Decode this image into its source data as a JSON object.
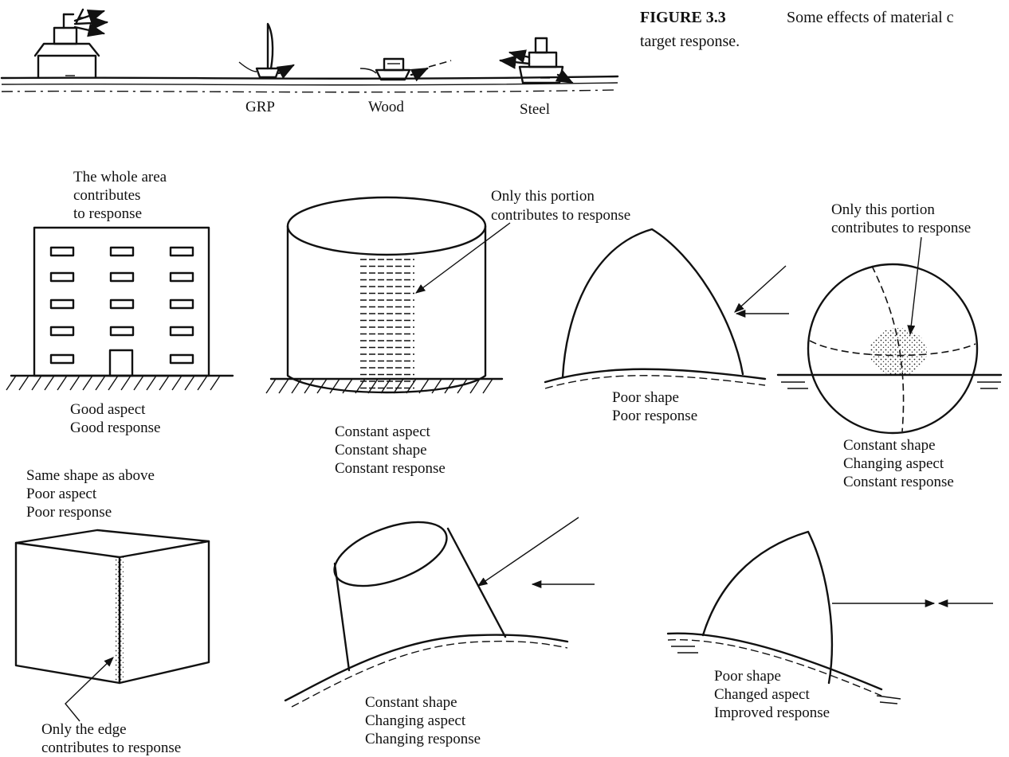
{
  "figure": {
    "number": "FIGURE 3.3",
    "caption_line1": "Some effects of material c",
    "caption_line2": "target response."
  },
  "ships": {
    "grp": "GRP",
    "wood": "Wood",
    "steel": "Steel"
  },
  "panels": {
    "building": {
      "top_lines": [
        "The whole area",
        "contributes",
        "to response"
      ],
      "bottom_lines": [
        "Good aspect",
        "Good response"
      ]
    },
    "tank": {
      "top_lines": [
        "Only this portion",
        "contributes to response"
      ],
      "bottom_lines": [
        "Constant aspect",
        "Constant shape",
        "Constant response"
      ]
    },
    "dome": {
      "bottom_lines": [
        "Poor shape",
        "Poor response"
      ]
    },
    "sphere": {
      "top_lines": [
        "Only this portion",
        "contributes to response"
      ],
      "bottom_lines": [
        "Constant shape",
        "Changing aspect",
        "Constant response"
      ]
    },
    "cube": {
      "top_lines": [
        "Same shape as above",
        "Poor aspect",
        "Poor response"
      ],
      "bottom_lines": [
        "Only the edge",
        "contributes to response"
      ]
    },
    "tilted_tank": {
      "bottom_lines": [
        "Constant shape",
        "Changing aspect",
        "Changing response"
      ]
    },
    "tilted_dome": {
      "bottom_lines": [
        "Poor shape",
        "Changed aspect",
        "Improved response"
      ]
    }
  }
}
